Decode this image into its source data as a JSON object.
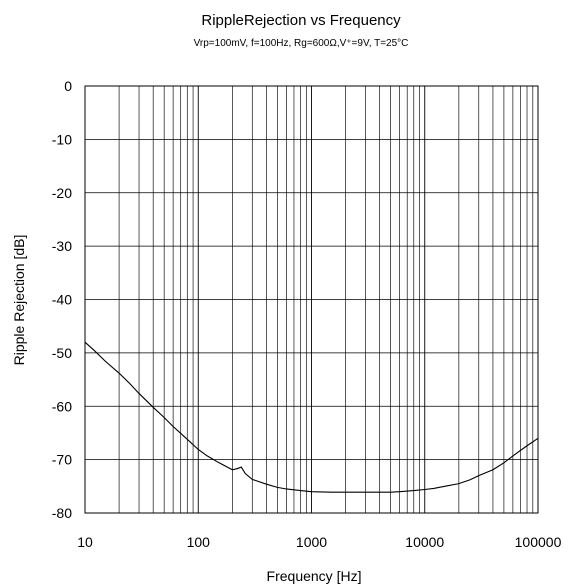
{
  "chart_data": {
    "type": "line",
    "title": "RippleRejection vs Frequency",
    "subtitle": "Vrp=100mV, f=100Hz, Rg=600Ω,V⁺=9V, T=25°C",
    "xlabel": "Frequency [Hz]",
    "ylabel": "Ripple Rejection [dB]",
    "x_scale": "log",
    "xlim": [
      10,
      100000
    ],
    "ylim": [
      -80,
      0
    ],
    "grid": true,
    "legend": "none",
    "x_ticks": [
      10,
      100,
      1000,
      10000,
      100000
    ],
    "x_tick_labels": [
      "10",
      "100",
      "1000",
      "10000",
      "100000"
    ],
    "y_ticks": [
      0,
      -10,
      -20,
      -30,
      -40,
      -50,
      -60,
      -70,
      -80
    ],
    "y_tick_labels": [
      "0",
      "-10",
      "-20",
      "-30",
      "-40",
      "-50",
      "-60",
      "-70",
      "-80"
    ],
    "series": [
      {
        "color": "#000000",
        "x": [
          10,
          12,
          15,
          20,
          25,
          30,
          40,
          50,
          60,
          80,
          100,
          120,
          150,
          200,
          220,
          240,
          260,
          300,
          400,
          500,
          600,
          800,
          1000,
          1500,
          2000,
          3000,
          5000,
          6000,
          8000,
          10000,
          12000,
          15000,
          20000,
          25000,
          30000,
          40000,
          50000,
          60000,
          80000,
          100000
        ],
        "y": [
          -48,
          -49.5,
          -51.5,
          -53.8,
          -55.8,
          -57.6,
          -60.2,
          -62.1,
          -63.8,
          -66.2,
          -68.1,
          -69.3,
          -70.5,
          -71.9,
          -71.7,
          -71.4,
          -72.6,
          -73.7,
          -74.6,
          -75.2,
          -75.5,
          -75.8,
          -76.0,
          -76.1,
          -76.1,
          -76.1,
          -76.1,
          -76.0,
          -75.8,
          -75.6,
          -75.4,
          -75.0,
          -74.5,
          -73.8,
          -73.0,
          -71.9,
          -70.6,
          -69.3,
          -67.4,
          -66.0
        ]
      }
    ]
  }
}
